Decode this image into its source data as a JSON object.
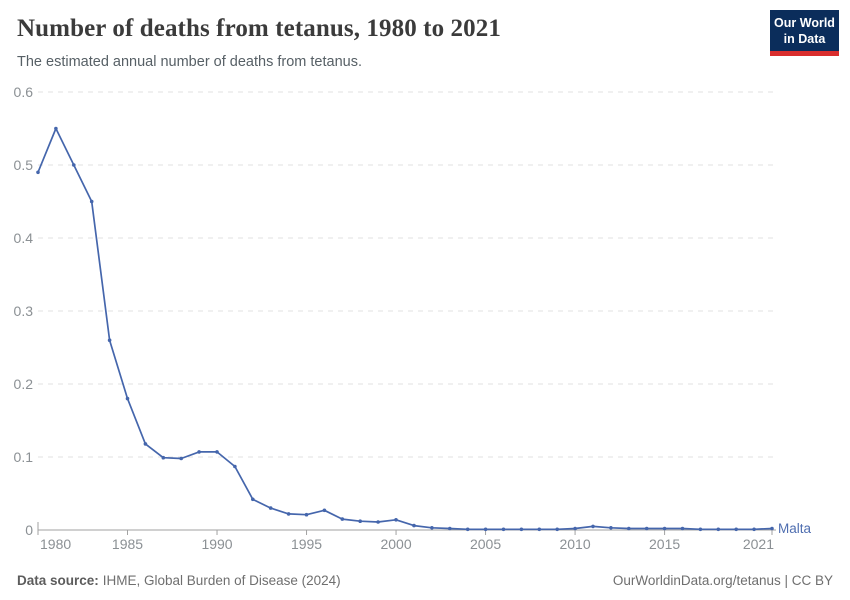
{
  "header": {
    "title": "Number of deaths from tetanus, 1980 to 2021",
    "subtitle": "The estimated annual number of deaths from tetanus.",
    "logo": {
      "line1": "Our World",
      "line2": "in Data"
    }
  },
  "footer": {
    "data_source_label": "Data source:",
    "data_source_value": "IHME, Global Burden of Disease (2024)",
    "attribution": "OurWorldinData.org/tetanus | CC BY"
  },
  "chart_data": {
    "type": "line",
    "title": "Number of deaths from tetanus, 1980 to 2021",
    "subtitle": "The estimated annual number of deaths from tetanus.",
    "entity": "Malta",
    "xlabel": "",
    "ylabel": "",
    "ylim": [
      0,
      0.6
    ],
    "yticks": [
      0,
      0.1,
      0.2,
      0.3,
      0.4,
      0.5,
      0.6
    ],
    "xticks": [
      1980,
      1985,
      1990,
      1995,
      2000,
      2005,
      2010,
      2015,
      2021
    ],
    "grid": true,
    "legend_position": "end-of-line",
    "x": [
      1980,
      1981,
      1982,
      1983,
      1984,
      1985,
      1986,
      1987,
      1988,
      1989,
      1990,
      1991,
      1992,
      1993,
      1994,
      1995,
      1996,
      1997,
      1998,
      1999,
      2000,
      2001,
      2002,
      2003,
      2004,
      2005,
      2006,
      2007,
      2008,
      2009,
      2010,
      2011,
      2012,
      2013,
      2014,
      2015,
      2016,
      2017,
      2018,
      2019,
      2020,
      2021
    ],
    "values": [
      0.49,
      0.55,
      0.5,
      0.45,
      0.26,
      0.18,
      0.118,
      0.099,
      0.098,
      0.107,
      0.107,
      0.087,
      0.042,
      0.03,
      0.022,
      0.021,
      0.027,
      0.015,
      0.012,
      0.011,
      0.014,
      0.006,
      0.003,
      0.002,
      0.001,
      0.001,
      0.001,
      0.001,
      0.001,
      0.001,
      0.002,
      0.005,
      0.003,
      0.002,
      0.002,
      0.002,
      0.002,
      0.001,
      0.001,
      0.001,
      0.001,
      0.002
    ],
    "colors": {
      "line": "#4566ac",
      "entity_label": "#4f6eb0",
      "tick_label": "#8b9094",
      "grid": "#e0e0e0",
      "axis": "#a2a2a2"
    }
  }
}
